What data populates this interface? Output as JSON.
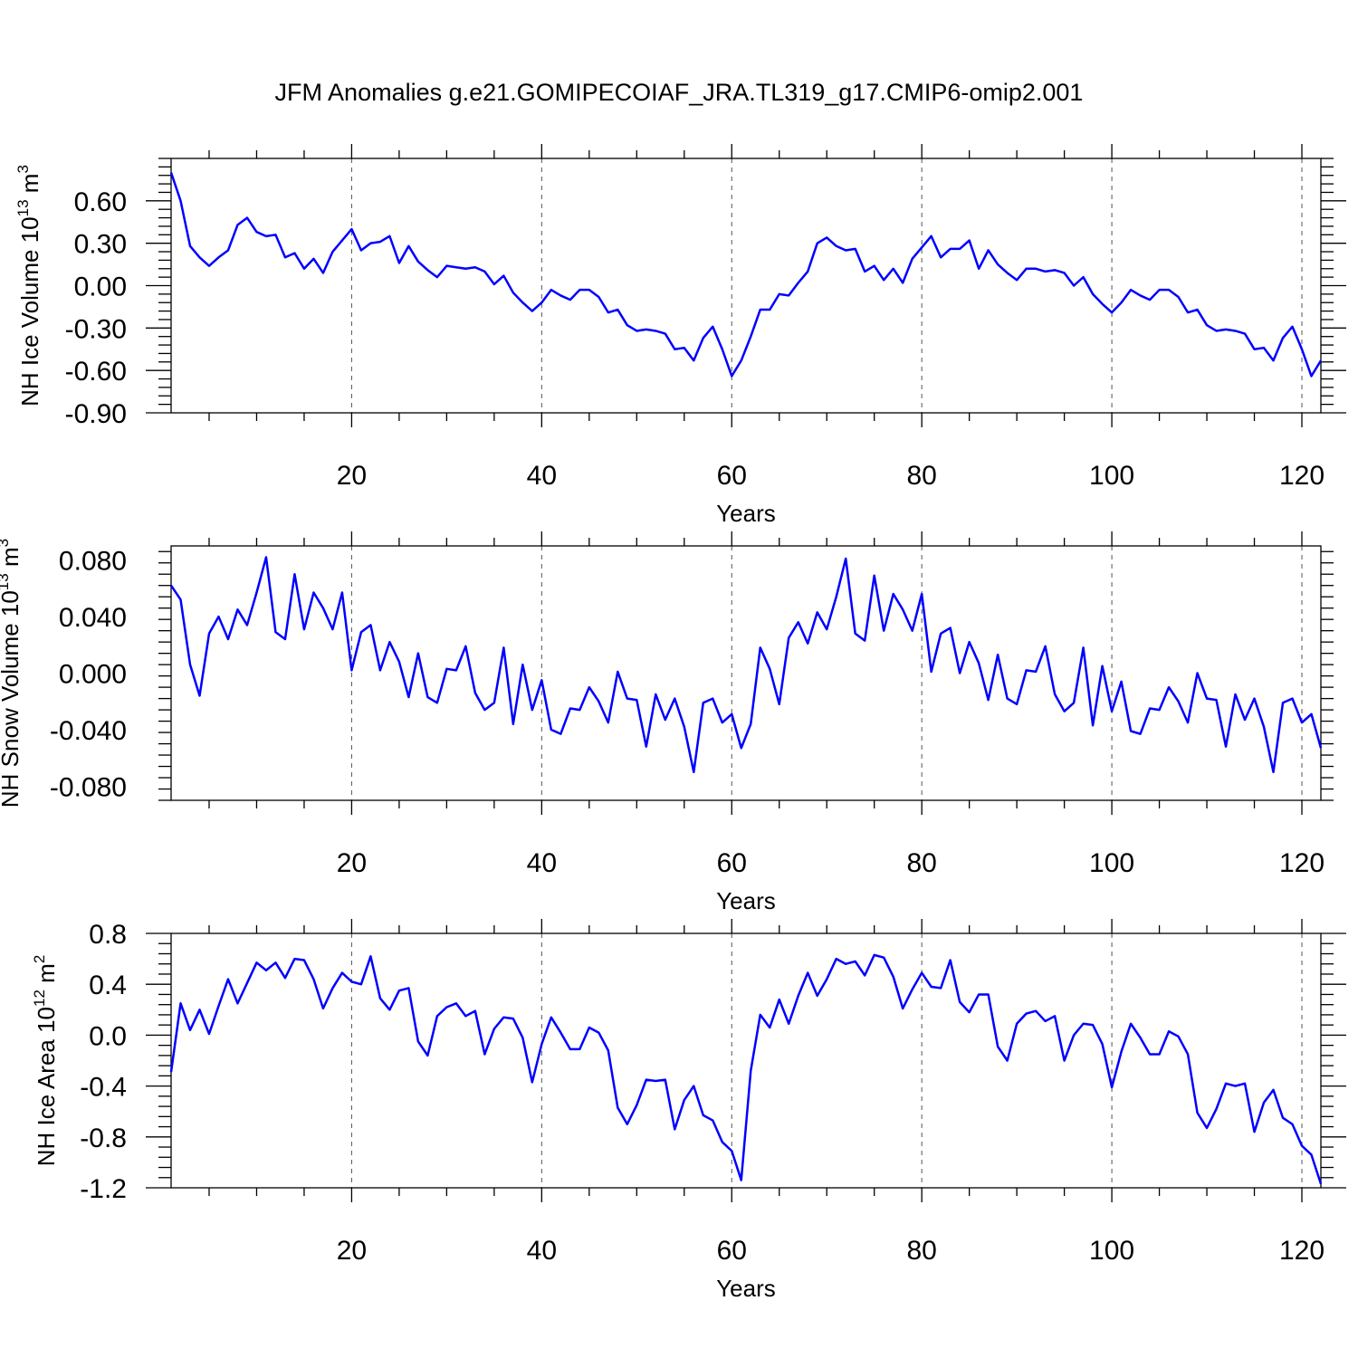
{
  "title": "JFM Anomalies g.e21.GOMIPECOIAF_JRA.TL319_g17.CMIP6-omip2.001",
  "series_color": "#0000ff",
  "chart_data": [
    {
      "type": "line",
      "title": "JFM Anomalies g.e21.GOMIPECOIAF_JRA.TL319_g17.CMIP6-omip2.001",
      "xlabel": "Years",
      "ylabel_main": "NH Ice Volume 10",
      "ylabel_sup": "13",
      "ylabel_unit": " m",
      "ylabel_unit_sup": "3",
      "xlim": [
        1,
        122
      ],
      "ylim": [
        -0.9,
        0.9
      ],
      "xticks": [
        20,
        40,
        60,
        80,
        100,
        120
      ],
      "xtick_labels": [
        "20",
        "40",
        "60",
        "80",
        "100",
        "120"
      ],
      "yticks": [
        -0.9,
        -0.6,
        -0.3,
        0.0,
        0.3,
        0.6
      ],
      "ytick_labels": [
        "-0.90",
        "-0.60",
        "-0.30",
        "0.00",
        "0.30",
        "0.60"
      ],
      "grid": "vertical dashed at major x ticks",
      "x_start": 1,
      "values": [
        0.8,
        0.6,
        0.28,
        0.2,
        0.14,
        0.2,
        0.25,
        0.43,
        0.48,
        0.38,
        0.35,
        0.36,
        0.2,
        0.23,
        0.12,
        0.19,
        0.09,
        0.24,
        0.32,
        0.4,
        0.25,
        0.3,
        0.31,
        0.35,
        0.16,
        0.28,
        0.17,
        0.11,
        0.06,
        0.14,
        0.13,
        0.12,
        0.13,
        0.1,
        0.01,
        0.07,
        -0.05,
        -0.12,
        -0.18,
        -0.12,
        -0.03,
        -0.07,
        -0.1,
        -0.03,
        -0.03,
        -0.08,
        -0.19,
        -0.17,
        -0.28,
        -0.32,
        -0.31,
        -0.32,
        -0.34,
        -0.45,
        -0.44,
        -0.53,
        -0.37,
        -0.29,
        -0.45,
        -0.64,
        -0.53,
        -0.36,
        -0.17,
        -0.17,
        -0.06,
        -0.07,
        0.02,
        0.1,
        0.3,
        0.34,
        0.28,
        0.25,
        0.26,
        0.1,
        0.14,
        0.04,
        0.12,
        0.02,
        0.19,
        0.27,
        0.35,
        0.2,
        0.26,
        0.26,
        0.32,
        0.12,
        0.25,
        0.15,
        0.09,
        0.04,
        0.12,
        0.12,
        0.1,
        0.11,
        0.09,
        0.0,
        0.06,
        -0.06,
        -0.13,
        -0.19,
        -0.12,
        -0.03,
        -0.07,
        -0.1,
        -0.03,
        -0.03,
        -0.08,
        -0.19,
        -0.17,
        -0.28,
        -0.32,
        -0.31,
        -0.32,
        -0.34,
        -0.45,
        -0.44,
        -0.53,
        -0.37,
        -0.29,
        -0.45,
        -0.64,
        -0.53
      ]
    },
    {
      "type": "line",
      "xlabel": "Years",
      "ylabel_main": "NH Snow Volume 10",
      "ylabel_sup": "13",
      "ylabel_unit": " m",
      "ylabel_unit_sup": "3",
      "xlim": [
        1,
        122
      ],
      "ylim": [
        -0.09,
        0.09
      ],
      "xticks": [
        20,
        40,
        60,
        80,
        100,
        120
      ],
      "xtick_labels": [
        "20",
        "40",
        "60",
        "80",
        "100",
        "120"
      ],
      "yticks": [
        -0.08,
        -0.04,
        0.0,
        0.04,
        0.08
      ],
      "ytick_labels": [
        "-0.080",
        "-0.040",
        "0.000",
        "0.040",
        "0.080"
      ],
      "grid": "vertical dashed at major x ticks",
      "x_start": 1,
      "values": [
        0.062,
        0.052,
        0.006,
        -0.016,
        0.028,
        0.04,
        0.024,
        0.045,
        0.034,
        0.057,
        0.082,
        0.029,
        0.024,
        0.07,
        0.031,
        0.057,
        0.046,
        0.031,
        0.057,
        0.002,
        0.029,
        0.034,
        0.002,
        0.022,
        0.008,
        -0.017,
        0.014,
        -0.017,
        -0.021,
        0.003,
        0.002,
        0.019,
        -0.014,
        -0.026,
        -0.021,
        0.018,
        -0.036,
        0.006,
        -0.026,
        -0.005,
        -0.04,
        -0.043,
        -0.025,
        -0.026,
        -0.01,
        -0.02,
        -0.035,
        0.001,
        -0.018,
        -0.019,
        -0.052,
        -0.015,
        -0.033,
        -0.018,
        -0.038,
        -0.07,
        -0.021,
        -0.018,
        -0.035,
        -0.029,
        -0.053,
        -0.036,
        0.018,
        0.003,
        -0.022,
        0.025,
        0.036,
        0.021,
        0.043,
        0.031,
        0.054,
        0.081,
        0.028,
        0.023,
        0.069,
        0.03,
        0.056,
        0.045,
        0.03,
        0.056,
        0.001,
        0.028,
        0.032,
        0.0,
        0.022,
        0.007,
        -0.019,
        0.013,
        -0.018,
        -0.022,
        0.002,
        0.001,
        0.019,
        -0.015,
        -0.027,
        -0.021,
        0.018,
        -0.037,
        0.005,
        -0.027,
        -0.006,
        -0.041,
        -0.043,
        -0.025,
        -0.026,
        -0.01,
        -0.02,
        -0.035,
        0.0,
        -0.018,
        -0.019,
        -0.052,
        -0.015,
        -0.033,
        -0.018,
        -0.038,
        -0.07,
        -0.021,
        -0.018,
        -0.035,
        -0.029,
        -0.053
      ]
    },
    {
      "type": "line",
      "xlabel": "Years",
      "ylabel_main": "NH Ice Area 10",
      "ylabel_sup": "12",
      "ylabel_unit": " m",
      "ylabel_unit_sup": "2",
      "xlim": [
        1,
        122
      ],
      "ylim": [
        -1.2,
        0.8
      ],
      "xticks": [
        20,
        40,
        60,
        80,
        100,
        120
      ],
      "xtick_labels": [
        "20",
        "40",
        "60",
        "80",
        "100",
        "120"
      ],
      "yticks": [
        -1.2,
        -0.8,
        -0.4,
        0.0,
        0.4,
        0.8
      ],
      "ytick_labels": [
        "-1.2",
        "-0.8",
        "-0.4",
        "0.0",
        "0.4",
        "0.8"
      ],
      "grid": "vertical dashed at major x ticks",
      "x_start": 1,
      "values": [
        -0.29,
        0.25,
        0.04,
        0.2,
        0.01,
        0.23,
        0.44,
        0.25,
        0.41,
        0.57,
        0.51,
        0.57,
        0.45,
        0.6,
        0.59,
        0.44,
        0.21,
        0.37,
        0.49,
        0.42,
        0.4,
        0.62,
        0.29,
        0.2,
        0.35,
        0.37,
        -0.05,
        -0.16,
        0.15,
        0.22,
        0.25,
        0.15,
        0.19,
        -0.15,
        0.05,
        0.14,
        0.13,
        -0.02,
        -0.37,
        -0.07,
        0.14,
        0.02,
        -0.11,
        -0.11,
        0.06,
        0.02,
        -0.12,
        -0.57,
        -0.7,
        -0.55,
        -0.35,
        -0.36,
        -0.35,
        -0.74,
        -0.51,
        -0.4,
        -0.63,
        -0.67,
        -0.84,
        -0.91,
        -1.14,
        -0.28,
        0.16,
        0.06,
        0.28,
        0.09,
        0.31,
        0.49,
        0.31,
        0.44,
        0.6,
        0.56,
        0.58,
        0.47,
        0.63,
        0.61,
        0.46,
        0.21,
        0.36,
        0.49,
        0.38,
        0.37,
        0.59,
        0.26,
        0.18,
        0.32,
        0.32,
        -0.09,
        -0.2,
        0.09,
        0.17,
        0.19,
        0.11,
        0.15,
        -0.2,
        0.0,
        0.09,
        0.08,
        -0.07,
        -0.41,
        -0.13,
        0.09,
        -0.02,
        -0.15,
        -0.15,
        0.03,
        -0.01,
        -0.15,
        -0.61,
        -0.73,
        -0.58,
        -0.38,
        -0.4,
        -0.38,
        -0.76,
        -0.53,
        -0.43,
        -0.65,
        -0.7,
        -0.87,
        -0.94,
        -1.17
      ]
    }
  ]
}
